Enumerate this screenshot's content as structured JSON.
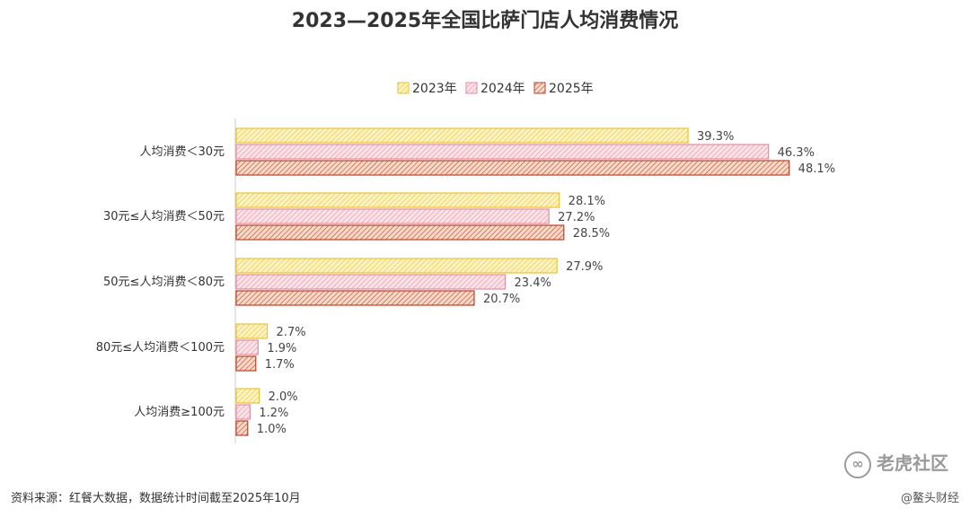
{
  "chart_data": {
    "type": "bar",
    "orientation": "horizontal",
    "title": "2023—2025年全国比萨门店人均消费情况",
    "categories": [
      "人均消费＜30元",
      "30元≤人均消费＜50元",
      "50元≤人均消费＜80元",
      "80元≤人均消费＜100元",
      "人均消费≥100元"
    ],
    "series": [
      {
        "name": "2023年",
        "values": [
          39.3,
          28.1,
          27.9,
          2.7,
          2.0
        ],
        "labels": [
          "39.3%",
          "28.1%",
          "27.9%",
          "2.7%",
          "2.0%"
        ],
        "fill": "#fdf3c0",
        "stroke": "#e8c23a",
        "hatch": "#e8c23a"
      },
      {
        "name": "2024年",
        "values": [
          46.3,
          27.2,
          23.4,
          1.9,
          1.2
        ],
        "labels": [
          "46.3%",
          "27.2%",
          "23.4%",
          "1.9%",
          "1.2%"
        ],
        "fill": "#fbe3e8",
        "stroke": "#e58ea0",
        "hatch": "#e58ea0"
      },
      {
        "name": "2025年",
        "values": [
          48.1,
          28.5,
          20.7,
          1.7,
          1.0
        ],
        "labels": [
          "48.1%",
          "28.5%",
          "20.7%",
          "1.7%",
          "1.0%"
        ],
        "fill": "#f8d9c8",
        "stroke": "#b8442a",
        "hatch": "#b8442a"
      }
    ],
    "unit": "%",
    "xlim": [
      0,
      50
    ],
    "legend": "top-center",
    "grid": false
  },
  "footer": {
    "source": "资料来源：红餐大数据，数据统计时间截至2025年10月",
    "watermark_handle": "@鳌头财经",
    "watermark_brand": "老虎社区",
    "watermark_symbol": "∞"
  }
}
